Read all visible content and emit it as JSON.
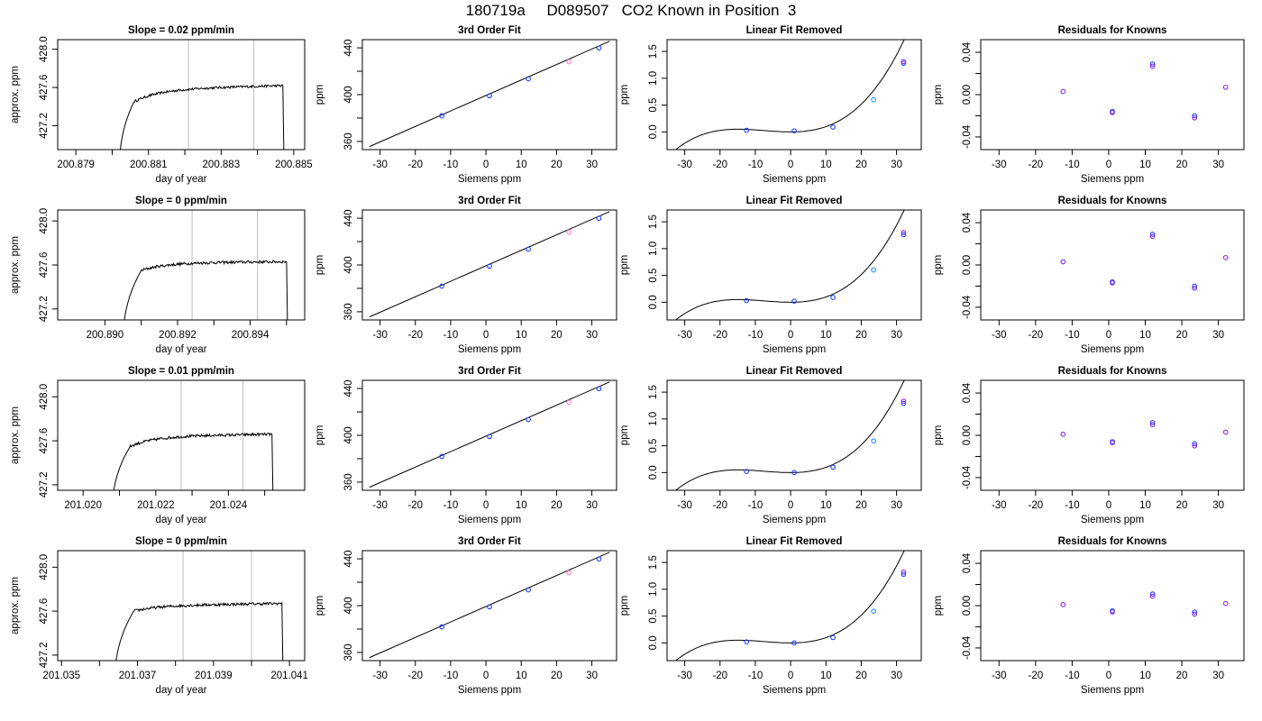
{
  "figure": {
    "title": "180719a     D089507   CO2 Known in Position  3"
  },
  "colors": {
    "axes": "#000000",
    "window_lines": "#c8c8c8",
    "trace": "#000000",
    "point_blue": "#1f3dff",
    "point_purple": "#8a2be2",
    "point_cyan": "#1e90ff",
    "point_pink": "#ff7fbf"
  },
  "chart_data": [
    {
      "type": "line",
      "row": 1,
      "title": "Slope =  0.02  ppm/min",
      "xlabel": "day of year",
      "ylabel": "approx. ppm",
      "xlim": [
        200.8785,
        200.8853
      ],
      "ylim": [
        426.95,
        428.1
      ],
      "xticks": [
        "200.879",
        "200.881",
        "200.883",
        "200.885"
      ],
      "xtick_minor": [
        200.88,
        200.882,
        200.884
      ],
      "yticks": [
        "427.2",
        "427.6",
        "428.0"
      ],
      "window": [
        200.8821,
        200.8839
      ],
      "trace": {
        "start": 200.8802,
        "rise_end": 200.8806,
        "level_start": 427.45,
        "plateau": 427.58,
        "plateau_end": 427.62,
        "drop": 200.8847
      }
    },
    {
      "type": "line",
      "row": 2,
      "title": "Slope =  0  ppm/min",
      "xlabel": "day of year",
      "ylabel": "approx. ppm",
      "xlim": [
        200.8887,
        200.8955
      ],
      "ylim": [
        427.1,
        428.1
      ],
      "xticks": [
        "200.890",
        "200.892",
        "200.894"
      ],
      "xtick_minor": [
        200.891,
        200.893,
        200.895
      ],
      "yticks": [
        "427.2",
        "427.6",
        "428.0"
      ],
      "window": [
        200.8924,
        200.8942
      ],
      "trace": {
        "start": 200.8905,
        "rise_end": 200.891,
        "level_start": 427.55,
        "plateau": 427.62,
        "plateau_end": 427.63,
        "drop": 200.895
      }
    },
    {
      "type": "line",
      "row": 3,
      "title": "Slope =  0.01  ppm/min",
      "xlabel": "day of year",
      "ylabel": "approx. ppm",
      "xlim": [
        201.0193,
        201.0261
      ],
      "ylim": [
        427.15,
        428.15
      ],
      "xticks": [
        "201.020",
        "201.022",
        "201.024"
      ],
      "xtick_minor": [
        201.021,
        201.023,
        201.025
      ],
      "yticks": [
        "427.2",
        "427.6",
        "428.0"
      ],
      "window": [
        201.0227,
        201.0244
      ],
      "trace": {
        "start": 201.0208,
        "rise_end": 201.0213,
        "level_start": 427.55,
        "plateau": 427.64,
        "plateau_end": 427.66,
        "drop": 201.0252
      }
    },
    {
      "type": "line",
      "row": 4,
      "title": "Slope =  0  ppm/min",
      "xlabel": "day of year",
      "ylabel": "approx. ppm",
      "xlim": [
        201.0349,
        201.0414
      ],
      "ylim": [
        427.15,
        428.15
      ],
      "xticks": [
        "201.035",
        "201.037",
        "201.039",
        "201.041"
      ],
      "xtick_minor": [
        201.036,
        201.038,
        201.04
      ],
      "yticks": [
        "427.2",
        "427.6",
        "428.0"
      ],
      "window": [
        201.0382,
        201.04
      ],
      "trace": {
        "start": 201.0364,
        "rise_end": 201.0369,
        "level_start": 427.6,
        "plateau": 427.65,
        "plateau_end": 427.67,
        "drop": 201.0408
      }
    },
    {
      "type": "scatter",
      "row": 1,
      "title": "3rd Order Fit",
      "xlabel": "Siemens ppm",
      "ylabel": "ppm",
      "xlim": [
        -35,
        37
      ],
      "ylim": [
        353,
        447
      ],
      "xticks": [
        "-30",
        "-20",
        "-10",
        "0",
        "10",
        "20",
        "30"
      ],
      "yticks": [
        "360",
        "400",
        "440"
      ],
      "yminor": [
        380,
        420
      ],
      "line": {
        "x": [
          -33,
          35
        ],
        "y": [
          355.6,
          445.6
        ]
      },
      "points": [
        {
          "x": -12.5,
          "y": 381.9,
          "c": "blue"
        },
        {
          "x": 1.0,
          "y": 399.0,
          "c": "blue"
        },
        {
          "x": 12.0,
          "y": 413.5,
          "c": "blue"
        },
        {
          "x": 23.5,
          "y": 428.1,
          "c": "pink"
        },
        {
          "x": 32.0,
          "y": 439.9,
          "c": "blue"
        }
      ]
    },
    {
      "type": "scatter",
      "row": 2,
      "title": "3rd Order Fit",
      "xlabel": "Siemens ppm",
      "ylabel": "ppm",
      "xlim": [
        -35,
        37
      ],
      "ylim": [
        353,
        447
      ],
      "xticks": [
        "-30",
        "-20",
        "-10",
        "0",
        "10",
        "20",
        "30"
      ],
      "yticks": [
        "360",
        "400",
        "440"
      ],
      "yminor": [
        380,
        420
      ],
      "line": {
        "x": [
          -33,
          35
        ],
        "y": [
          355.6,
          445.6
        ]
      },
      "points": [
        {
          "x": -12.5,
          "y": 381.9,
          "c": "blue"
        },
        {
          "x": 1.0,
          "y": 399.0,
          "c": "blue"
        },
        {
          "x": 12.0,
          "y": 413.5,
          "c": "blue"
        },
        {
          "x": 23.5,
          "y": 428.1,
          "c": "pink"
        },
        {
          "x": 32.0,
          "y": 439.9,
          "c": "blue"
        }
      ]
    },
    {
      "type": "scatter",
      "row": 3,
      "title": "3rd Order Fit",
      "xlabel": "Siemens ppm",
      "ylabel": "ppm",
      "xlim": [
        -35,
        37
      ],
      "ylim": [
        353,
        447
      ],
      "xticks": [
        "-30",
        "-20",
        "-10",
        "0",
        "10",
        "20",
        "30"
      ],
      "yticks": [
        "360",
        "400",
        "440"
      ],
      "yminor": [
        380,
        420
      ],
      "line": {
        "x": [
          -33,
          35
        ],
        "y": [
          355.6,
          445.6
        ]
      },
      "points": [
        {
          "x": -12.5,
          "y": 381.9,
          "c": "blue"
        },
        {
          "x": 1.0,
          "y": 399.0,
          "c": "blue"
        },
        {
          "x": 12.0,
          "y": 413.5,
          "c": "blue"
        },
        {
          "x": 23.5,
          "y": 428.1,
          "c": "pink"
        },
        {
          "x": 32.0,
          "y": 439.9,
          "c": "blue"
        }
      ]
    },
    {
      "type": "scatter",
      "row": 4,
      "title": "3rd Order Fit",
      "xlabel": "Siemens ppm",
      "ylabel": "ppm",
      "xlim": [
        -35,
        37
      ],
      "ylim": [
        353,
        447
      ],
      "xticks": [
        "-30",
        "-20",
        "-10",
        "0",
        "10",
        "20",
        "30"
      ],
      "yticks": [
        "360",
        "400",
        "440"
      ],
      "yminor": [
        380,
        420
      ],
      "line": {
        "x": [
          -33,
          35
        ],
        "y": [
          355.6,
          445.6
        ]
      },
      "points": [
        {
          "x": -12.5,
          "y": 381.9,
          "c": "blue"
        },
        {
          "x": 1.0,
          "y": 399.0,
          "c": "blue"
        },
        {
          "x": 12.0,
          "y": 413.5,
          "c": "blue"
        },
        {
          "x": 23.5,
          "y": 428.1,
          "c": "pink"
        },
        {
          "x": 32.0,
          "y": 439.9,
          "c": "blue"
        }
      ]
    },
    {
      "type": "scatter",
      "row": 1,
      "title": "Linear Fit Removed",
      "xlabel": "Siemens ppm",
      "ylabel": "ppm",
      "xlim": [
        -35,
        37
      ],
      "ylim": [
        -0.33,
        1.72
      ],
      "xticks": [
        "-30",
        "-20",
        "-10",
        "0",
        "10",
        "20",
        "30"
      ],
      "yticks": [
        "0.0",
        "0.5",
        "1.0",
        "1.5"
      ],
      "curve": {
        "x_range": [
          -33,
          35
        ],
        "coef": [
          0.0,
          0.0,
          0.00068,
          3.05e-05
        ]
      },
      "points": [
        {
          "x": -12.5,
          "y": 0.03,
          "c": "blue"
        },
        {
          "x": 1.0,
          "y": 0.02,
          "c": "blue"
        },
        {
          "x": 12.0,
          "y": 0.09,
          "c": "blue"
        },
        {
          "x": 23.5,
          "y": 0.6,
          "c": "cyan"
        },
        {
          "x": 32.0,
          "y": 1.28,
          "c": "blue"
        },
        {
          "x": 32.0,
          "y": 1.31,
          "c": "purple"
        }
      ]
    },
    {
      "type": "scatter",
      "row": 2,
      "title": "Linear Fit Removed",
      "xlabel": "Siemens ppm",
      "ylabel": "ppm",
      "xlim": [
        -35,
        37
      ],
      "ylim": [
        -0.33,
        1.72
      ],
      "xticks": [
        "-30",
        "-20",
        "-10",
        "0",
        "10",
        "20",
        "30"
      ],
      "yticks": [
        "0.0",
        "0.5",
        "1.0",
        "1.5"
      ],
      "curve": {
        "x_range": [
          -33,
          35
        ],
        "coef": [
          0.0,
          0.0,
          0.00068,
          3.05e-05
        ]
      },
      "points": [
        {
          "x": -12.5,
          "y": 0.03,
          "c": "blue"
        },
        {
          "x": 1.0,
          "y": 0.02,
          "c": "blue"
        },
        {
          "x": 12.0,
          "y": 0.09,
          "c": "blue"
        },
        {
          "x": 23.5,
          "y": 0.6,
          "c": "cyan"
        },
        {
          "x": 32.0,
          "y": 1.26,
          "c": "blue"
        },
        {
          "x": 32.0,
          "y": 1.3,
          "c": "purple"
        }
      ]
    },
    {
      "type": "scatter",
      "row": 3,
      "title": "Linear Fit Removed",
      "xlabel": "Siemens ppm",
      "ylabel": "ppm",
      "xlim": [
        -35,
        37
      ],
      "ylim": [
        -0.33,
        1.72
      ],
      "xticks": [
        "-30",
        "-20",
        "-10",
        "0",
        "10",
        "20",
        "30"
      ],
      "yticks": [
        "0.0",
        "0.5",
        "1.0",
        "1.5"
      ],
      "curve": {
        "x_range": [
          -33,
          35
        ],
        "coef": [
          0.0,
          0.0,
          0.00068,
          3.05e-05
        ]
      },
      "points": [
        {
          "x": -12.5,
          "y": 0.02,
          "c": "blue"
        },
        {
          "x": 1.0,
          "y": 0.0,
          "c": "blue"
        },
        {
          "x": 12.0,
          "y": 0.1,
          "c": "blue"
        },
        {
          "x": 23.5,
          "y": 0.59,
          "c": "cyan"
        },
        {
          "x": 32.0,
          "y": 1.29,
          "c": "blue"
        },
        {
          "x": 32.0,
          "y": 1.33,
          "c": "purple"
        }
      ]
    },
    {
      "type": "scatter",
      "row": 4,
      "title": "Linear Fit Removed",
      "xlabel": "Siemens ppm",
      "ylabel": "ppm",
      "xlim": [
        -35,
        37
      ],
      "ylim": [
        -0.33,
        1.72
      ],
      "xticks": [
        "-30",
        "-20",
        "-10",
        "0",
        "10",
        "20",
        "30"
      ],
      "yticks": [
        "0.0",
        "0.5",
        "1.0",
        "1.5"
      ],
      "curve": {
        "x_range": [
          -33,
          35
        ],
        "coef": [
          0.0,
          0.0,
          0.00068,
          3.05e-05
        ]
      },
      "points": [
        {
          "x": -12.5,
          "y": 0.02,
          "c": "blue"
        },
        {
          "x": 1.0,
          "y": 0.0,
          "c": "blue"
        },
        {
          "x": 12.0,
          "y": 0.1,
          "c": "blue"
        },
        {
          "x": 23.5,
          "y": 0.59,
          "c": "cyan"
        },
        {
          "x": 32.0,
          "y": 1.28,
          "c": "blue"
        },
        {
          "x": 32.0,
          "y": 1.32,
          "c": "purple"
        }
      ]
    },
    {
      "type": "scatter",
      "row": 1,
      "title": "Residuals for Knowns",
      "xlabel": "Siemens ppm",
      "ylabel": "ppm",
      "xlim": [
        -35,
        37
      ],
      "ylim": [
        -0.052,
        0.052
      ],
      "xticks": [
        "-30",
        "-20",
        "-10",
        "0",
        "10",
        "20",
        "30"
      ],
      "yticks": [
        "-0.04",
        "0.00",
        "0.04"
      ],
      "yminor": [
        -0.02,
        0.02
      ],
      "points": [
        {
          "x": -12.5,
          "y": 0.003,
          "c": "purple"
        },
        {
          "x": 1.0,
          "y": -0.016,
          "c": "blue"
        },
        {
          "x": 1.0,
          "y": -0.017,
          "c": "purple"
        },
        {
          "x": 12.0,
          "y": 0.029,
          "c": "blue"
        },
        {
          "x": 12.0,
          "y": 0.027,
          "c": "purple"
        },
        {
          "x": 23.5,
          "y": -0.02,
          "c": "blue"
        },
        {
          "x": 23.5,
          "y": -0.022,
          "c": "purple"
        },
        {
          "x": 32.0,
          "y": 0.007,
          "c": "purple"
        }
      ]
    },
    {
      "type": "scatter",
      "row": 2,
      "title": "Residuals for Knowns",
      "xlabel": "Siemens ppm",
      "ylabel": "ppm",
      "xlim": [
        -35,
        37
      ],
      "ylim": [
        -0.052,
        0.052
      ],
      "xticks": [
        "-30",
        "-20",
        "-10",
        "0",
        "10",
        "20",
        "30"
      ],
      "yticks": [
        "-0.04",
        "0.00",
        "0.04"
      ],
      "yminor": [
        -0.02,
        0.02
      ],
      "points": [
        {
          "x": -12.5,
          "y": 0.003,
          "c": "purple"
        },
        {
          "x": 1.0,
          "y": -0.016,
          "c": "blue"
        },
        {
          "x": 1.0,
          "y": -0.017,
          "c": "purple"
        },
        {
          "x": 12.0,
          "y": 0.029,
          "c": "blue"
        },
        {
          "x": 12.0,
          "y": 0.027,
          "c": "purple"
        },
        {
          "x": 23.5,
          "y": -0.02,
          "c": "blue"
        },
        {
          "x": 23.5,
          "y": -0.022,
          "c": "purple"
        },
        {
          "x": 32.0,
          "y": 0.007,
          "c": "purple"
        }
      ]
    },
    {
      "type": "scatter",
      "row": 3,
      "title": "Residuals for Knowns",
      "xlabel": "Siemens ppm",
      "ylabel": "ppm",
      "xlim": [
        -35,
        37
      ],
      "ylim": [
        -0.052,
        0.052
      ],
      "xticks": [
        "-30",
        "-20",
        "-10",
        "0",
        "10",
        "20",
        "30"
      ],
      "yticks": [
        "-0.04",
        "0.00",
        "0.04"
      ],
      "yminor": [
        -0.02,
        0.02
      ],
      "points": [
        {
          "x": -12.5,
          "y": 0.001,
          "c": "purple"
        },
        {
          "x": 1.0,
          "y": -0.006,
          "c": "blue"
        },
        {
          "x": 1.0,
          "y": -0.007,
          "c": "purple"
        },
        {
          "x": 12.0,
          "y": 0.012,
          "c": "blue"
        },
        {
          "x": 12.0,
          "y": 0.01,
          "c": "purple"
        },
        {
          "x": 23.5,
          "y": -0.008,
          "c": "blue"
        },
        {
          "x": 23.5,
          "y": -0.01,
          "c": "purple"
        },
        {
          "x": 32.0,
          "y": 0.003,
          "c": "purple"
        }
      ]
    },
    {
      "type": "scatter",
      "row": 4,
      "title": "Residuals for Knowns",
      "xlabel": "Siemens ppm",
      "ylabel": "ppm",
      "xlim": [
        -35,
        37
      ],
      "ylim": [
        -0.052,
        0.052
      ],
      "xticks": [
        "-30",
        "-20",
        "-10",
        "0",
        "10",
        "20",
        "30"
      ],
      "yticks": [
        "-0.04",
        "0.00",
        "0.04"
      ],
      "yminor": [
        -0.02,
        0.02
      ],
      "points": [
        {
          "x": -12.5,
          "y": 0.001,
          "c": "purple"
        },
        {
          "x": 1.0,
          "y": -0.005,
          "c": "blue"
        },
        {
          "x": 1.0,
          "y": -0.006,
          "c": "purple"
        },
        {
          "x": 12.0,
          "y": 0.011,
          "c": "blue"
        },
        {
          "x": 12.0,
          "y": 0.009,
          "c": "purple"
        },
        {
          "x": 23.5,
          "y": -0.006,
          "c": "blue"
        },
        {
          "x": 23.5,
          "y": -0.008,
          "c": "purple"
        },
        {
          "x": 32.0,
          "y": 0.002,
          "c": "purple"
        }
      ]
    }
  ]
}
